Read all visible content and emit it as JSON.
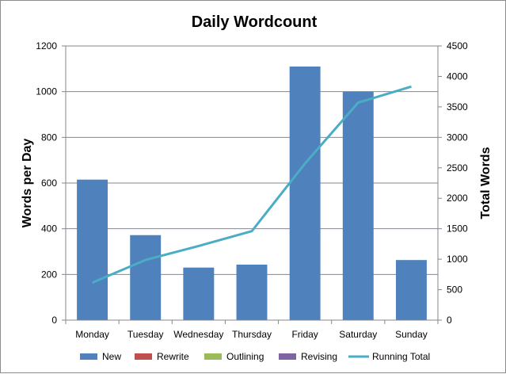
{
  "chart_data": {
    "type": "bar",
    "title": "Daily Wordcount",
    "ylabel": "Words per Day",
    "y2label": "Total Words",
    "xlabel": "",
    "categories": [
      "Monday",
      "Tuesday",
      "Wednesday",
      "Thursday",
      "Friday",
      "Saturday",
      "Sunday"
    ],
    "ylim": [
      0,
      1200
    ],
    "yticks": [
      0,
      200,
      400,
      600,
      800,
      1000,
      1200
    ],
    "y2lim": [
      0,
      4500
    ],
    "y2ticks": [
      0,
      500,
      1000,
      1500,
      2000,
      2500,
      3000,
      3500,
      4000,
      4500
    ],
    "grid": true,
    "legend_position": "bottom",
    "series": [
      {
        "name": "New",
        "kind": "bar",
        "axis": "left",
        "color": "#4f81bd",
        "values": [
          615,
          372,
          230,
          243,
          1110,
          1000,
          263
        ]
      },
      {
        "name": "Rewrite",
        "kind": "bar",
        "axis": "left",
        "color": "#c0504d",
        "values": [
          0,
          0,
          0,
          0,
          0,
          0,
          0
        ]
      },
      {
        "name": "Outlining",
        "kind": "bar",
        "axis": "left",
        "color": "#9bbb59",
        "values": [
          0,
          0,
          0,
          0,
          0,
          0,
          0
        ]
      },
      {
        "name": "Revising",
        "kind": "bar",
        "axis": "left",
        "color": "#8064a2",
        "values": [
          0,
          0,
          0,
          0,
          0,
          0,
          0
        ]
      },
      {
        "name": "Running Total",
        "kind": "line",
        "axis": "right",
        "color": "#4bacc6",
        "values": [
          615,
          987,
          1217,
          1460,
          2570,
          3570,
          3833
        ]
      }
    ]
  }
}
